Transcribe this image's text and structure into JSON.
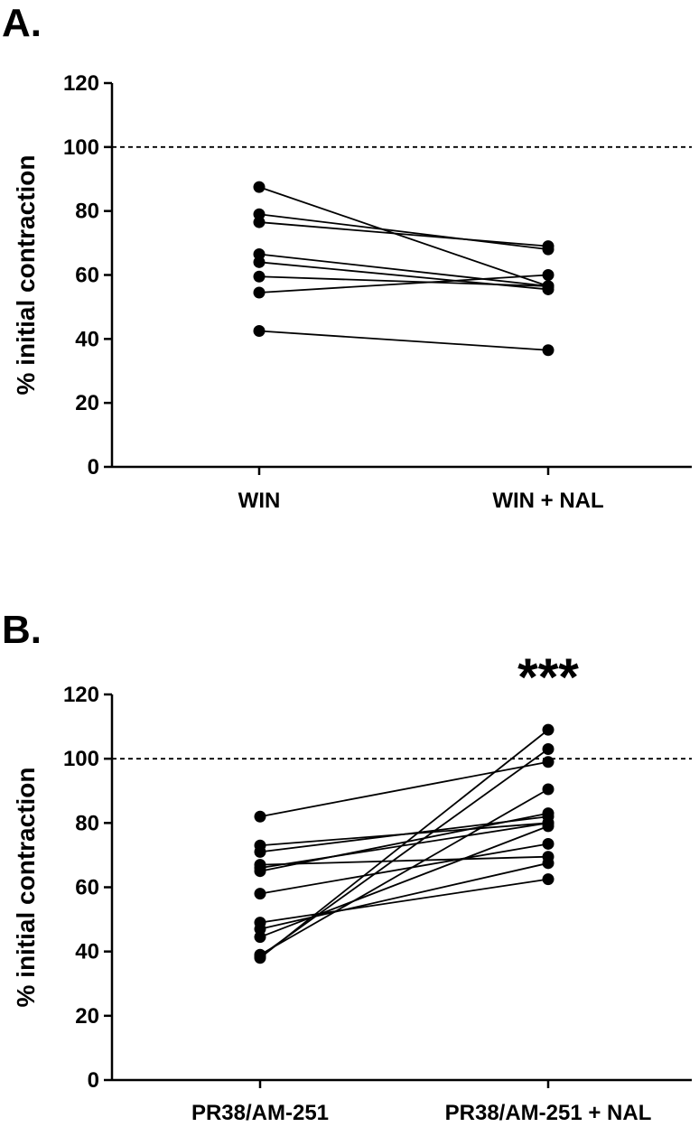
{
  "chart_data": [
    {
      "type": "line",
      "panel_label": "A.",
      "ylabel": "% initial contraction",
      "categories": [
        "WIN",
        "WIN + NAL"
      ],
      "ylim": [
        0,
        120
      ],
      "yticks": [
        0,
        20,
        40,
        60,
        80,
        100,
        120
      ],
      "reference_line": 100,
      "annotation": "",
      "pairs": [
        [
          87.5,
          56.5
        ],
        [
          79,
          68
        ],
        [
          76.5,
          69
        ],
        [
          66.5,
          56.5
        ],
        [
          64,
          55.5
        ],
        [
          59.5,
          56.5
        ],
        [
          54.5,
          60
        ],
        [
          42.5,
          36.5
        ]
      ]
    },
    {
      "type": "line",
      "panel_label": "B.",
      "ylabel": "% initial contraction",
      "categories": [
        "PR38/AM-251",
        "PR38/AM-251 + NAL"
      ],
      "ylim": [
        0,
        120
      ],
      "yticks": [
        0,
        20,
        40,
        60,
        80,
        100,
        120
      ],
      "reference_line": 100,
      "annotation": "***",
      "pairs": [
        [
          82,
          99
        ],
        [
          73,
          80
        ],
        [
          71,
          82
        ],
        [
          67,
          69.5
        ],
        [
          66,
          80
        ],
        [
          65,
          83
        ],
        [
          58,
          73.5
        ],
        [
          49,
          62.5
        ],
        [
          47,
          67.5
        ],
        [
          44.5,
          79
        ],
        [
          38.5,
          103
        ],
        [
          38,
          109
        ],
        [
          39,
          90.5
        ]
      ]
    }
  ]
}
